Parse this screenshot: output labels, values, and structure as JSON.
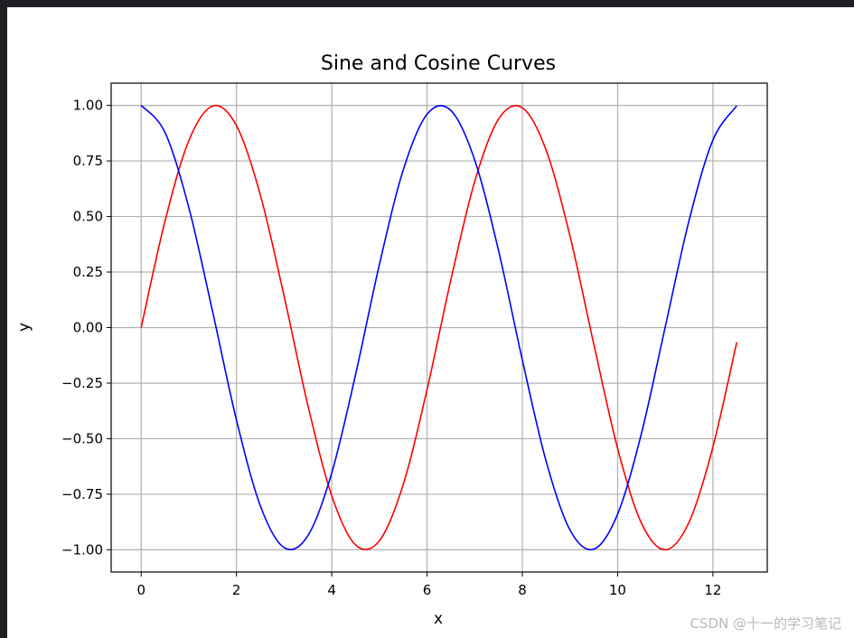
{
  "chart_data": {
    "type": "line",
    "title": "Sine and Cosine Curves",
    "xlabel": "x",
    "ylabel": "y",
    "xlim": [
      -0.63,
      13.14
    ],
    "ylim": [
      -1.1,
      1.1
    ],
    "x_ticks": [
      0,
      2,
      4,
      6,
      8,
      10,
      12
    ],
    "x_tick_labels": [
      "0",
      "2",
      "4",
      "6",
      "8",
      "10",
      "12"
    ],
    "y_ticks": [
      1.0,
      0.75,
      0.5,
      0.25,
      0.0,
      -0.25,
      -0.5,
      -0.75,
      -1.0
    ],
    "y_tick_labels": [
      "1.00",
      "0.75",
      "0.50",
      "0.25",
      "0.00",
      "−0.25",
      "−0.50",
      "−0.75",
      "−1.00"
    ],
    "grid": true,
    "x": [
      0,
      0.5,
      1.0,
      1.5,
      2.0,
      2.5,
      3.0,
      3.5,
      4.0,
      4.5,
      5.0,
      5.5,
      6.0,
      6.5,
      7.0,
      7.5,
      8.0,
      8.5,
      9.0,
      9.5,
      10.0,
      10.5,
      11.0,
      11.5,
      12.0,
      12.5
    ],
    "series": [
      {
        "color": "#ff0000",
        "values": [
          0.0,
          0.479,
          0.841,
          0.997,
          0.909,
          0.598,
          0.141,
          -0.351,
          -0.757,
          -0.978,
          -0.959,
          -0.706,
          -0.279,
          0.215,
          0.657,
          0.938,
          0.989,
          0.798,
          0.412,
          -0.075,
          -0.544,
          -0.88,
          -1.0,
          -0.875,
          -0.537,
          -0.066
        ]
      },
      {
        "color": "#0000ff",
        "values": [
          1.0,
          0.878,
          0.54,
          0.071,
          -0.416,
          -0.801,
          -0.99,
          -0.936,
          -0.654,
          -0.211,
          0.284,
          0.709,
          0.96,
          0.977,
          0.754,
          0.347,
          -0.146,
          -0.602,
          -0.911,
          -0.997,
          -0.839,
          -0.476,
          0.004,
          0.483,
          0.844,
          0.998
        ]
      }
    ]
  },
  "watermark": "CSDN @十一的学习笔记"
}
